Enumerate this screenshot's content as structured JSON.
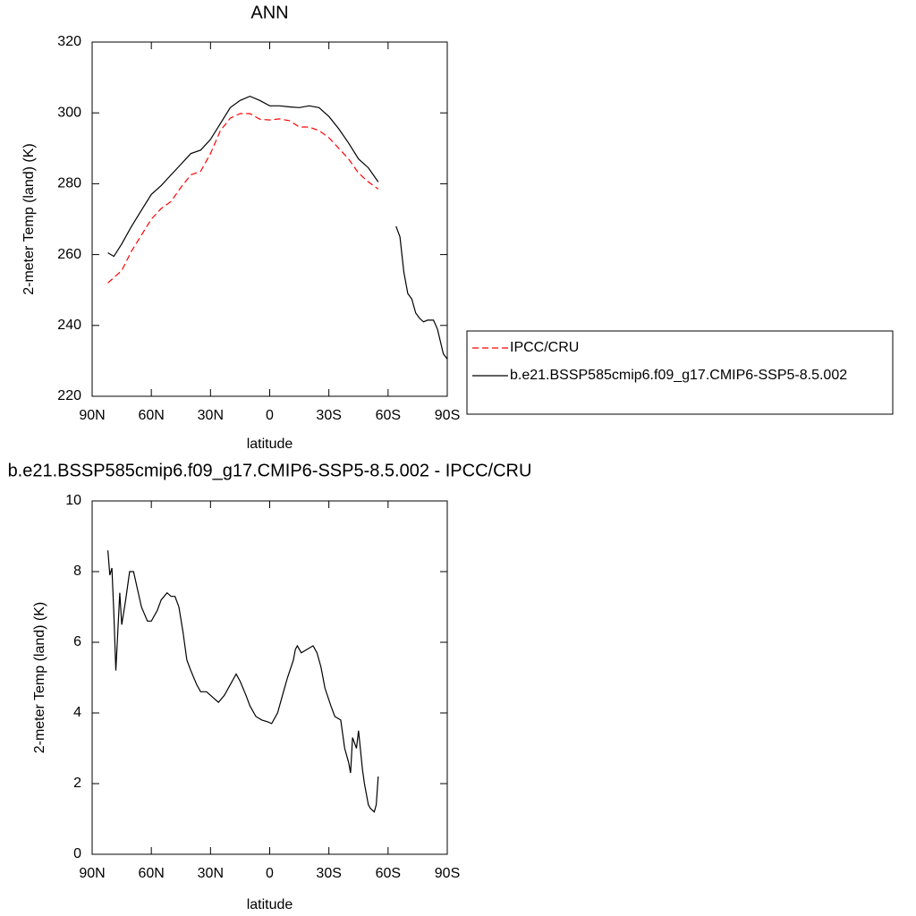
{
  "chart_data": [
    {
      "type": "line",
      "title": "ANN",
      "xlabel": "latitude",
      "ylabel": "2-meter Temp (land) (K)",
      "x": [
        82,
        79,
        75,
        70,
        65,
        60,
        55,
        50,
        45,
        40,
        35,
        30,
        25,
        20,
        15,
        10,
        5,
        0,
        -5,
        -10,
        -15,
        -20,
        -25,
        -30,
        -35,
        -40,
        -45,
        -50,
        -55,
        -60,
        -64,
        -66,
        -68,
        -70,
        -72,
        -74,
        -76,
        -78,
        -80,
        -83,
        -85,
        -88,
        -90
      ],
      "series": [
        {
          "name": "IPCC/CRU",
          "color": "#ff0000",
          "dash": "dashed",
          "values": [
            252,
            253.5,
            255.5,
            261,
            265.5,
            270,
            273,
            275,
            279,
            282.5,
            283.5,
            288.5,
            295,
            298.5,
            299.8,
            299.8,
            298.2,
            298,
            298.3,
            297.8,
            296,
            296,
            295,
            293,
            290,
            287,
            283,
            280.5,
            278.5,
            null,
            null,
            null,
            null,
            null,
            null,
            null,
            null,
            null,
            null,
            null,
            null,
            null,
            null
          ]
        },
        {
          "name": "b.e21.BSSP585cmip6.f09_g17.CMIP6-SSP5-8.5.002",
          "color": "#000000",
          "dash": "solid",
          "values": [
            260.5,
            259.5,
            263,
            268,
            272.5,
            277,
            279.5,
            282.5,
            285.5,
            288.5,
            289.5,
            292.5,
            297,
            301.5,
            303.5,
            304.7,
            303.5,
            302,
            302,
            301.7,
            301.5,
            302,
            301.5,
            299,
            295.5,
            291.5,
            287,
            284.5,
            280.5,
            null,
            268,
            265,
            255,
            249,
            247.5,
            243.5,
            242,
            241,
            241.5,
            241.5,
            239,
            232,
            230.5
          ]
        }
      ],
      "xlim": [
        90,
        -90
      ],
      "xticks": [
        {
          "value": 90,
          "label": "90N"
        },
        {
          "value": 60,
          "label": "60N"
        },
        {
          "value": 30,
          "label": "30N"
        },
        0,
        {
          "value": -30,
          "label": "30S"
        },
        {
          "value": -60,
          "label": "60S"
        },
        {
          "value": -90,
          "label": "90S"
        }
      ],
      "ylim": [
        220,
        320
      ],
      "yticks": [
        220,
        240,
        260,
        280,
        300,
        320
      ],
      "legend": "right"
    },
    {
      "type": "line",
      "title": "b.e21.BSSP585cmip6.f09_g17.CMIP6-SSP5-8.5.002 - IPCC/CRU",
      "xlabel": "latitude",
      "ylabel": "2-meter Temp (land) (K)",
      "x": [
        82,
        81,
        80,
        79,
        78,
        76,
        75,
        73,
        71,
        69,
        67,
        65,
        62,
        60,
        57,
        55,
        52,
        50,
        48,
        46,
        44,
        42,
        40,
        37,
        35,
        32,
        28,
        26,
        23,
        20,
        17,
        15,
        12,
        10,
        7,
        4,
        1,
        -1,
        -4,
        -7,
        -9,
        -12,
        -13,
        -14,
        -16,
        -19,
        -22,
        -24,
        -26,
        -28,
        -31,
        -33,
        -36,
        -38,
        -40,
        -41,
        -42,
        -44,
        -45,
        -47,
        -48,
        -50,
        -51,
        -53,
        -54,
        -55
      ],
      "series": [
        {
          "color": "#000000",
          "dash": "solid",
          "values": [
            8.6,
            7.9,
            8.1,
            6.8,
            5.2,
            7.4,
            6.5,
            7.2,
            8.0,
            8.0,
            7.5,
            7.0,
            6.6,
            6.6,
            6.9,
            7.2,
            7.4,
            7.3,
            7.3,
            7.0,
            6.3,
            5.5,
            5.2,
            4.8,
            4.6,
            4.6,
            4.4,
            4.3,
            4.5,
            4.8,
            5.1,
            4.9,
            4.5,
            4.2,
            3.9,
            3.8,
            3.75,
            3.7,
            4.0,
            4.6,
            5.0,
            5.5,
            5.8,
            5.9,
            5.7,
            5.8,
            5.9,
            5.7,
            5.3,
            4.7,
            4.2,
            3.9,
            3.8,
            3.0,
            2.6,
            2.3,
            3.3,
            3.0,
            3.5,
            2.4,
            2.0,
            1.4,
            1.3,
            1.2,
            1.4,
            2.2
          ]
        }
      ],
      "xlim": [
        90,
        -90
      ],
      "xticks": [
        {
          "value": 90,
          "label": "90N"
        },
        {
          "value": 60,
          "label": "60N"
        },
        {
          "value": 30,
          "label": "30N"
        },
        0,
        {
          "value": -30,
          "label": "30S"
        },
        {
          "value": -60,
          "label": "60S"
        },
        {
          "value": -90,
          "label": "90S"
        }
      ],
      "ylim": [
        0,
        10
      ],
      "yticks": [
        0,
        2,
        4,
        6,
        8,
        10
      ]
    }
  ]
}
